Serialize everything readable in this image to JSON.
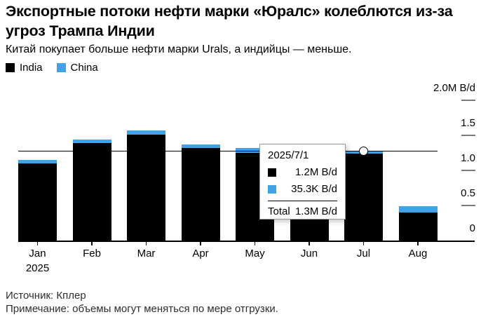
{
  "header": {
    "title": "Экспортные потоки нефти марки «Юралс» колеблются из-за угроз Трампа Индии",
    "subtitle": "Китай покупает больше нефти марки Urals, а индийцы — меньше."
  },
  "legend": [
    {
      "label": "India",
      "color": "#000000"
    },
    {
      "label": "China",
      "color": "#3FA3E8"
    }
  ],
  "chart_data": {
    "type": "bar",
    "stacked": true,
    "title": "Экспортные потоки нефти марки «Юралс» колеблются из-за угроз Трампа Индии",
    "unit": "M B/d",
    "categories": [
      "Jan",
      "Feb",
      "Mar",
      "Apr",
      "May",
      "Jun",
      "Jul",
      "Aug"
    ],
    "x_year_label": "2025",
    "series": [
      {
        "name": "India",
        "color": "#000000",
        "values": [
          1.1,
          1.39,
          1.51,
          1.32,
          1.25,
          1.15,
          1.24,
          0.4
        ]
      },
      {
        "name": "China",
        "color": "#3FA3E8",
        "values": [
          0.05,
          0.05,
          0.06,
          0.05,
          0.07,
          0.05,
          0.0353,
          0.09
        ]
      }
    ],
    "ylim": [
      0,
      2.0
    ],
    "yticks": [
      {
        "value": 2.0,
        "label": "2.0M B/d"
      },
      {
        "value": 1.5,
        "label": "1.5"
      },
      {
        "value": 1.0,
        "label": "1.0"
      },
      {
        "value": 0.5,
        "label": "0.5"
      },
      {
        "value": 0,
        "label": "0"
      }
    ],
    "grid": false,
    "legend_position": "top-left",
    "hover_line_value": 1.275,
    "hover_index": 6
  },
  "tooltip": {
    "date": "2025/7/1",
    "rows": [
      {
        "series": "India",
        "color": "#000000",
        "value": "1.2M B/d"
      },
      {
        "series": "China",
        "color": "#3FA3E8",
        "value": "35.3K B/d"
      }
    ],
    "total_label": "Total",
    "total_value": "1.3M B/d"
  },
  "footer": {
    "source": "Источник: Кплер",
    "note": "Примечание: объемы могут меняться по мере отгрузки."
  }
}
